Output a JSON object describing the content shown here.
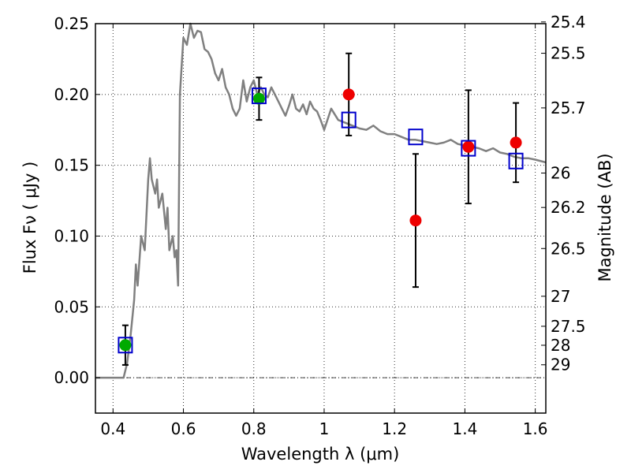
{
  "chart_data": {
    "type": "scatter",
    "title": "",
    "xlabel": "Wavelength  λ (μm)",
    "ylabel": "Flux  Fν  ( μJy )",
    "y2label": "Magnitude (AB)",
    "xlim": [
      0.35,
      1.63
    ],
    "ylim": [
      -0.025,
      0.25
    ],
    "grid": true,
    "x_ticks": [
      0.4,
      0.6,
      0.8,
      1.0,
      1.2,
      1.4,
      1.6
    ],
    "x_tick_labels": [
      "0.4",
      "0.6",
      "0.8",
      "1",
      "1.2",
      "1.4",
      "1.6"
    ],
    "y_ticks": [
      0.0,
      0.05,
      0.1,
      0.15,
      0.2,
      0.25
    ],
    "y_tick_labels": [
      "0.00",
      "0.05",
      "0.10",
      "0.15",
      "0.20",
      "0.25"
    ],
    "y2_ticks": [
      {
        "label": "25.4",
        "flux": 0.2512
      },
      {
        "label": "25.5",
        "flux": 0.2291
      },
      {
        "label": "25.7",
        "flux": 0.1905
      },
      {
        "label": "26",
        "flux": 0.1445
      },
      {
        "label": "26.2",
        "flux": 0.1202
      },
      {
        "label": "26.5",
        "flux": 0.0912
      },
      {
        "label": "27",
        "flux": 0.0575
      },
      {
        "label": "27.5",
        "flux": 0.0363
      },
      {
        "label": "28",
        "flux": 0.0229
      },
      {
        "label": "29",
        "flux": 0.0091
      }
    ],
    "zero_line": 0.0,
    "colors": {
      "model": "#808080",
      "model_points": "#0000cc",
      "green_points": "#00aa00",
      "red_points": "#ee0000",
      "errorbar": "#000000",
      "zero_line": "#000000"
    },
    "series": [
      {
        "kind": "model-spectrum",
        "x": [
          0.35,
          0.43,
          0.44,
          0.45,
          0.46,
          0.465,
          0.47,
          0.48,
          0.49,
          0.5,
          0.505,
          0.51,
          0.52,
          0.525,
          0.53,
          0.54,
          0.55,
          0.555,
          0.56,
          0.57,
          0.575,
          0.58,
          0.585,
          0.59,
          0.6,
          0.61,
          0.62,
          0.63,
          0.64,
          0.65,
          0.66,
          0.67,
          0.68,
          0.69,
          0.7,
          0.71,
          0.72,
          0.73,
          0.74,
          0.75,
          0.76,
          0.77,
          0.78,
          0.79,
          0.8,
          0.81,
          0.82,
          0.83,
          0.84,
          0.85,
          0.86,
          0.87,
          0.88,
          0.89,
          0.9,
          0.91,
          0.92,
          0.93,
          0.94,
          0.95,
          0.96,
          0.97,
          0.98,
          0.99,
          1.0,
          1.02,
          1.04,
          1.06,
          1.08,
          1.1,
          1.12,
          1.14,
          1.16,
          1.18,
          1.2,
          1.22,
          1.24,
          1.26,
          1.28,
          1.3,
          1.32,
          1.34,
          1.36,
          1.38,
          1.4,
          1.42,
          1.44,
          1.46,
          1.48,
          1.5,
          1.52,
          1.54,
          1.56,
          1.58,
          1.6,
          1.63
        ],
        "values": [
          0.0,
          0.0,
          0.01,
          0.03,
          0.055,
          0.08,
          0.065,
          0.1,
          0.09,
          0.14,
          0.155,
          0.14,
          0.13,
          0.14,
          0.12,
          0.13,
          0.105,
          0.12,
          0.09,
          0.1,
          0.085,
          0.09,
          0.065,
          0.2,
          0.24,
          0.235,
          0.25,
          0.24,
          0.245,
          0.244,
          0.232,
          0.23,
          0.225,
          0.215,
          0.21,
          0.218,
          0.205,
          0.2,
          0.19,
          0.185,
          0.19,
          0.21,
          0.195,
          0.205,
          0.21,
          0.2,
          0.205,
          0.2,
          0.198,
          0.205,
          0.2,
          0.195,
          0.19,
          0.185,
          0.192,
          0.2,
          0.19,
          0.188,
          0.193,
          0.186,
          0.195,
          0.19,
          0.188,
          0.182,
          0.175,
          0.19,
          0.182,
          0.18,
          0.178,
          0.176,
          0.175,
          0.178,
          0.174,
          0.172,
          0.172,
          0.17,
          0.168,
          0.168,
          0.167,
          0.166,
          0.165,
          0.166,
          0.168,
          0.165,
          0.164,
          0.163,
          0.162,
          0.16,
          0.162,
          0.159,
          0.158,
          0.156,
          0.155,
          0.155,
          0.154,
          0.152
        ]
      },
      {
        "kind": "model-points",
        "x": [
          0.435,
          0.815,
          1.07,
          1.26,
          1.41,
          1.545
        ],
        "values": [
          0.023,
          0.199,
          0.182,
          0.17,
          0.162,
          0.153
        ]
      },
      {
        "kind": "green-observed",
        "x": [
          0.435,
          0.815
        ],
        "values": [
          0.023,
          0.197
        ],
        "errors": [
          0.014,
          0.015
        ]
      },
      {
        "kind": "red-observed",
        "x": [
          1.07,
          1.26,
          1.41,
          1.545
        ],
        "values": [
          0.2,
          0.111,
          0.163,
          0.166
        ],
        "errors": [
          0.029,
          0.047,
          0.04,
          0.028
        ]
      }
    ]
  }
}
